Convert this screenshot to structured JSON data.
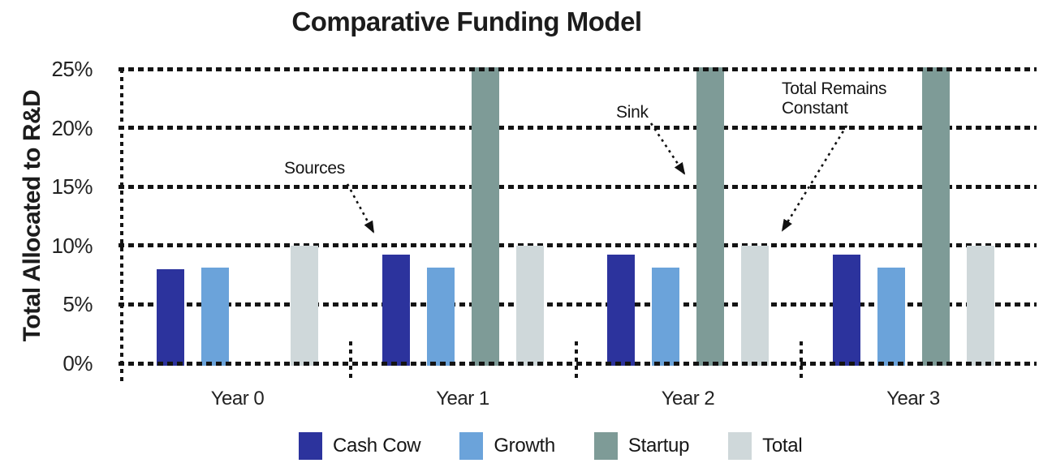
{
  "chart_data": {
    "type": "bar",
    "title": "Comparative Funding Model",
    "xlabel": "",
    "ylabel": "Total Allocated to R&D",
    "categories": [
      "Year 0",
      "Year 1",
      "Year 2",
      "Year 3"
    ],
    "series": [
      {
        "name": "Cash Cow",
        "color": "#2c339d",
        "values": [
          8,
          9.2,
          9.2,
          9.2
        ]
      },
      {
        "name": "Growth",
        "color": "#6ba3da",
        "values": [
          8.1,
          8.1,
          8.1,
          8.1
        ]
      },
      {
        "name": "Startup",
        "color": "#7e9b97",
        "values": [
          null,
          25,
          25,
          25
        ]
      },
      {
        "name": "Total",
        "color": "#cfd8da",
        "values": [
          10,
          10,
          10,
          10
        ]
      }
    ],
    "ylim": [
      0,
      25
    ],
    "ytick_step": 5,
    "yticks": [
      "0%",
      "5%",
      "10%",
      "15%",
      "20%",
      "25%"
    ],
    "grid": "dotted horizontal gridlines, dotted y-axis line, dotted group separators on x-axis",
    "legend_position": "bottom",
    "annotations": [
      {
        "id": "sources",
        "lines": [
          "Sources"
        ],
        "target": "top of Year 1 Cash Cow bar"
      },
      {
        "id": "sink",
        "lines": [
          "Sink"
        ],
        "target": "Year 2 Startup bar"
      },
      {
        "id": "total-remains-constant",
        "lines": [
          "Total Remains",
          "Constant"
        ],
        "target": "top of Year 2 Total bar"
      }
    ]
  }
}
